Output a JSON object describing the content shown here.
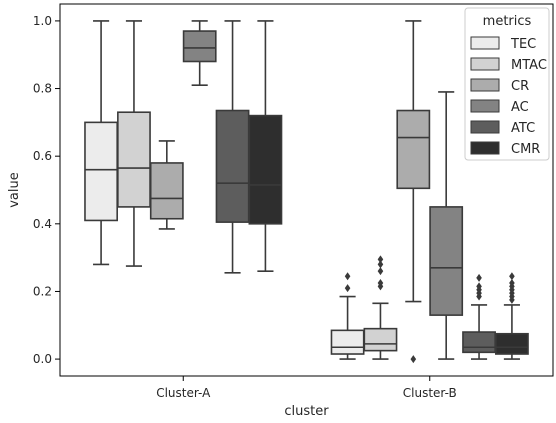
{
  "chart_data": {
    "type": "box",
    "xlabel": "cluster",
    "ylabel": "value",
    "categories": [
      "Cluster-A",
      "Cluster-B"
    ],
    "ylim": [
      -0.05,
      1.05
    ],
    "yticks": [
      0.0,
      0.2,
      0.4,
      0.6,
      0.8,
      1.0
    ],
    "ytick_labels": [
      "0.0",
      "0.2",
      "0.4",
      "0.6",
      "0.8",
      "1.0"
    ],
    "grid": false,
    "legend": {
      "title": "metrics",
      "position": "top-right"
    },
    "series": [
      {
        "name": "TEC",
        "color": "#ececec",
        "boxes": [
          {
            "min": 0.28,
            "q1": 0.41,
            "median": 0.56,
            "q3": 0.7,
            "max": 1.0,
            "outliers": []
          },
          {
            "min": 0.0,
            "q1": 0.015,
            "median": 0.035,
            "q3": 0.085,
            "max": 0.185,
            "outliers": [
              0.21,
              0.245
            ]
          }
        ]
      },
      {
        "name": "MTAC",
        "color": "#d2d2d2",
        "boxes": [
          {
            "min": 0.275,
            "q1": 0.45,
            "median": 0.565,
            "q3": 0.73,
            "max": 1.0,
            "outliers": []
          },
          {
            "min": 0.0,
            "q1": 0.025,
            "median": 0.045,
            "q3": 0.09,
            "max": 0.165,
            "outliers": [
              0.215,
              0.225,
              0.26,
              0.28,
              0.295
            ]
          }
        ]
      },
      {
        "name": "CR",
        "color": "#acacac",
        "boxes": [
          {
            "min": 0.385,
            "q1": 0.415,
            "median": 0.475,
            "q3": 0.58,
            "max": 0.645,
            "outliers": []
          },
          {
            "min": 0.17,
            "q1": 0.505,
            "median": 0.655,
            "q3": 0.735,
            "max": 1.0,
            "outliers": [
              0.0
            ]
          }
        ]
      },
      {
        "name": "AC",
        "color": "#838383",
        "boxes": [
          {
            "min": 0.81,
            "q1": 0.88,
            "median": 0.92,
            "q3": 0.97,
            "max": 1.0,
            "outliers": []
          },
          {
            "min": 0.0,
            "q1": 0.13,
            "median": 0.27,
            "q3": 0.45,
            "max": 0.79,
            "outliers": []
          }
        ]
      },
      {
        "name": "ATC",
        "color": "#5d5d5d",
        "boxes": [
          {
            "min": 0.255,
            "q1": 0.405,
            "median": 0.52,
            "q3": 0.735,
            "max": 1.0,
            "outliers": []
          },
          {
            "min": 0.0,
            "q1": 0.02,
            "median": 0.035,
            "q3": 0.08,
            "max": 0.16,
            "outliers": [
              0.185,
              0.195,
              0.205,
              0.215,
              0.24
            ]
          }
        ]
      },
      {
        "name": "CMR",
        "color": "#2e2e2e",
        "boxes": [
          {
            "min": 0.26,
            "q1": 0.4,
            "median": 0.515,
            "q3": 0.72,
            "max": 1.0,
            "outliers": []
          },
          {
            "min": 0.0,
            "q1": 0.015,
            "median": 0.035,
            "q3": 0.075,
            "max": 0.16,
            "outliers": [
              0.175,
              0.185,
              0.195,
              0.205,
              0.215,
              0.225,
              0.245
            ]
          }
        ]
      }
    ]
  }
}
